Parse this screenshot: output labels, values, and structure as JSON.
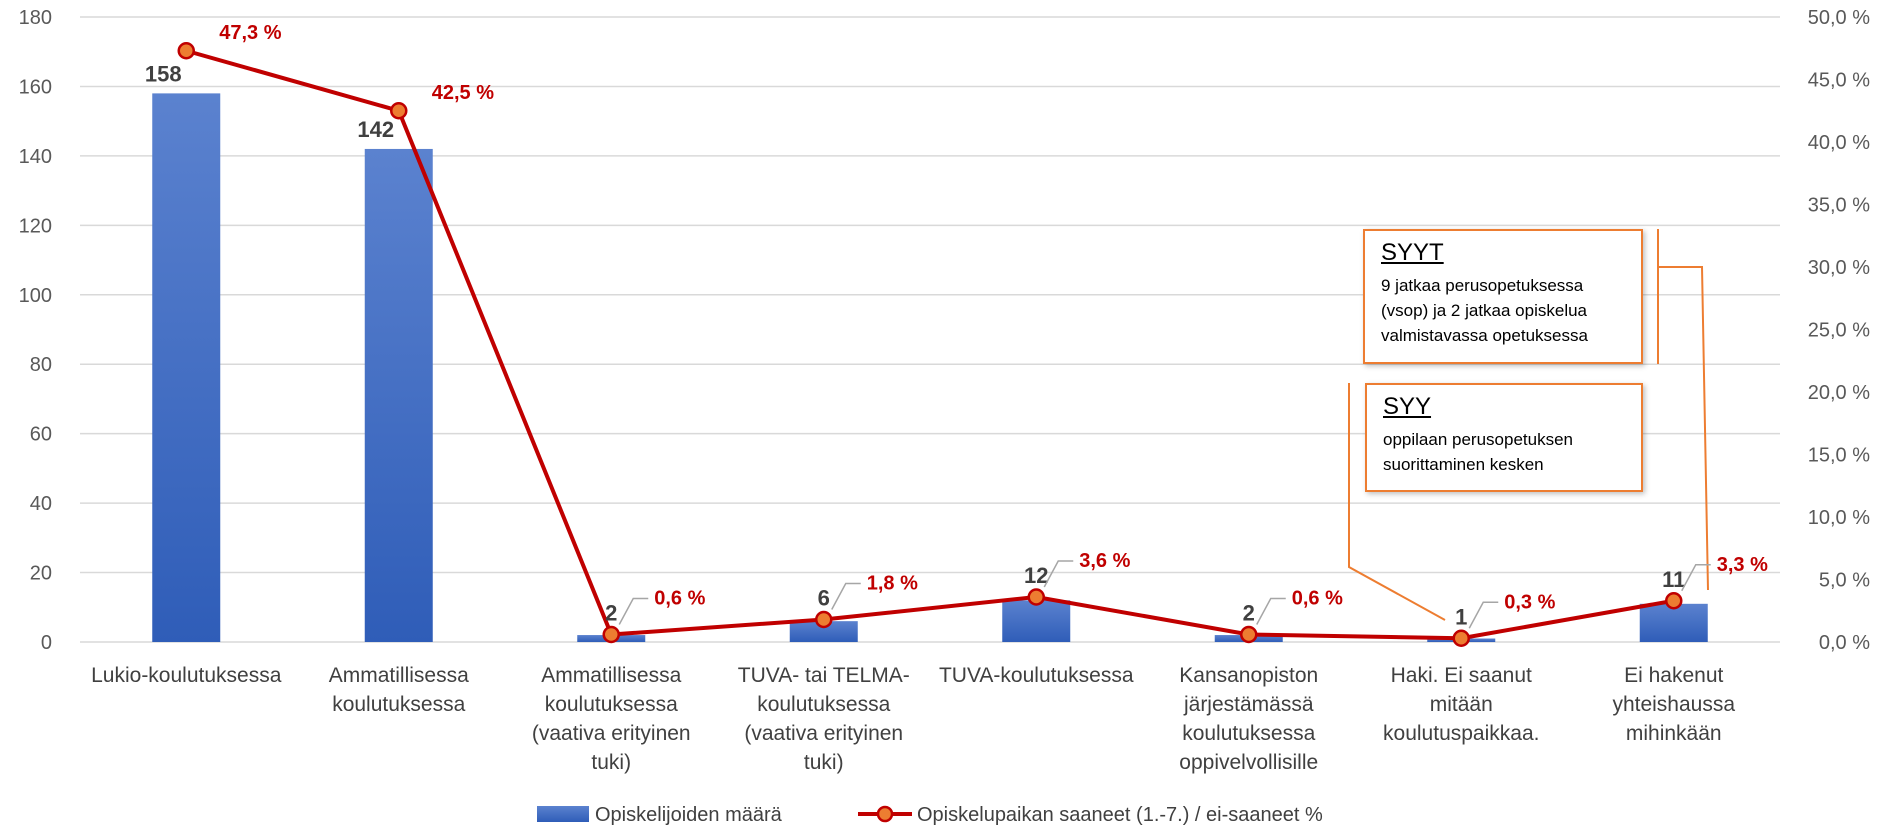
{
  "chart_data": {
    "type": "bar",
    "categories": [
      [
        "Lukio-koulutuksessa"
      ],
      [
        "Ammatillisessa",
        "koulutuksessa"
      ],
      [
        "Ammatillisessa",
        "koulutuksessa",
        "(vaativa erityinen",
        "tuki)"
      ],
      [
        "TUVA- tai TELMA-",
        "koulutuksessa",
        "(vaativa erityinen",
        "tuki)"
      ],
      [
        "TUVA-koulutuksessa"
      ],
      [
        "Kansanopiston",
        "järjestämässä",
        "koulutuksessa",
        "oppivelvollisille"
      ],
      [
        "Haki. Ei saanut",
        "mitään",
        "koulutuspaikkaa."
      ],
      [
        "Ei hakenut",
        "yhteishaussa",
        "mihinkään"
      ]
    ],
    "series": [
      {
        "name": "Opiskelijoiden määrä",
        "type": "bar",
        "axis": "left",
        "values": [
          158,
          142,
          2,
          6,
          12,
          2,
          1,
          11
        ],
        "labels": [
          "158",
          "142",
          "2",
          "6",
          "12",
          "2",
          "1",
          "11"
        ],
        "color": "#4472c4"
      },
      {
        "name": "Opiskelupaikan saaneet (1.-7.) / ei-saaneet %",
        "type": "line",
        "axis": "right",
        "values": [
          47.3,
          42.5,
          0.6,
          1.8,
          3.6,
          0.6,
          0.3,
          3.3
        ],
        "labels": [
          "47,3 %",
          "42,5 %",
          "0,6 %",
          "1,8 %",
          "3,6 %",
          "0,6 %",
          "0,3 %",
          "3,3 %"
        ],
        "color": "#c00000",
        "marker_color": "#ed7d31"
      }
    ],
    "left_axis": {
      "min": 0,
      "max": 180,
      "step": 20,
      "ticks": [
        "0",
        "20",
        "40",
        "60",
        "80",
        "100",
        "120",
        "140",
        "160",
        "180"
      ]
    },
    "right_axis": {
      "min": 0,
      "max": 50,
      "step": 5,
      "ticks": [
        "0,0 %",
        "5,0 %",
        "10,0 %",
        "15,0 %",
        "20,0 %",
        "25,0 %",
        "30,0 %",
        "35,0 %",
        "40,0 %",
        "45,0 %",
        "50,0 %"
      ]
    },
    "grid": true,
    "legend_position": "bottom"
  },
  "annotations": {
    "syyt": {
      "title": "SYYT",
      "text": "9 jatkaa perusopetuksessa (vsop) ja 2 jatkaa opiskelua valmistavassa opetuksessa"
    },
    "syy": {
      "title": "SYY",
      "text": "oppilaan perusopetuksen suorittaminen kesken"
    }
  },
  "colors": {
    "accent": "#ed7d31",
    "line": "#c00000",
    "bar": "#4472c4"
  }
}
